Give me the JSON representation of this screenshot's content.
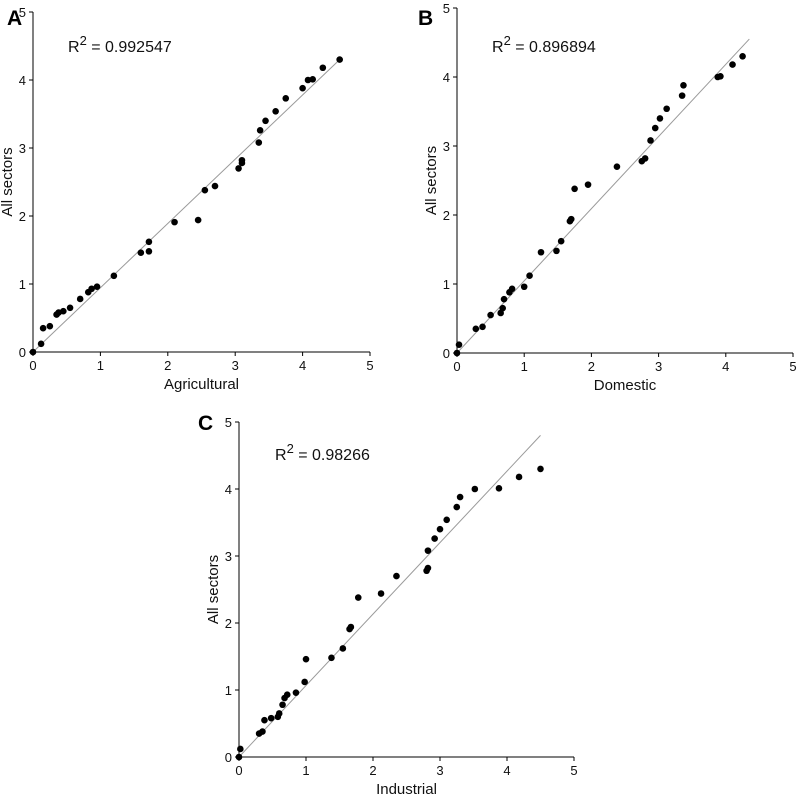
{
  "chart_data": [
    {
      "panel": "A",
      "type": "scatter",
      "xlabel": "Agricultural",
      "ylabel": "All sectors",
      "xlim": [
        0,
        5
      ],
      "ylim": [
        0,
        5
      ],
      "xticks": [
        0,
        1,
        2,
        3,
        4,
        5
      ],
      "yticks": [
        0,
        1,
        2,
        3,
        4,
        5
      ],
      "r2_prefix": "R",
      "r2_sup": "2",
      "r2_value": " = 0.992547",
      "fit_line": [
        [
          0,
          0
        ],
        [
          4.55,
          4.3
        ]
      ],
      "points": [
        [
          0.0,
          0.0
        ],
        [
          0.12,
          0.12
        ],
        [
          0.15,
          0.35
        ],
        [
          0.25,
          0.38
        ],
        [
          0.35,
          0.55
        ],
        [
          0.38,
          0.58
        ],
        [
          0.45,
          0.6
        ],
        [
          0.55,
          0.65
        ],
        [
          0.7,
          0.78
        ],
        [
          0.82,
          0.88
        ],
        [
          0.87,
          0.93
        ],
        [
          0.95,
          0.96
        ],
        [
          1.2,
          1.12
        ],
        [
          1.6,
          1.46
        ],
        [
          1.72,
          1.48
        ],
        [
          1.72,
          1.62
        ],
        [
          2.1,
          1.91
        ],
        [
          2.45,
          1.94
        ],
        [
          2.55,
          2.38
        ],
        [
          2.7,
          2.44
        ],
        [
          3.05,
          2.7
        ],
        [
          3.1,
          2.78
        ],
        [
          3.1,
          2.82
        ],
        [
          3.35,
          3.08
        ],
        [
          3.37,
          3.26
        ],
        [
          3.45,
          3.4
        ],
        [
          3.6,
          3.54
        ],
        [
          3.75,
          3.73
        ],
        [
          4.0,
          3.88
        ],
        [
          4.08,
          4.0
        ],
        [
          4.15,
          4.01
        ],
        [
          4.3,
          4.18
        ],
        [
          4.55,
          4.3
        ]
      ]
    },
    {
      "panel": "B",
      "type": "scatter",
      "xlabel": "Domestic",
      "ylabel": "All sectors",
      "xlim": [
        0,
        5
      ],
      "ylim": [
        0,
        5
      ],
      "xticks": [
        0,
        1,
        2,
        3,
        4,
        5
      ],
      "yticks": [
        0,
        1,
        2,
        3,
        4,
        5
      ],
      "r2_prefix": "R",
      "r2_sup": "2",
      "r2_value": " = 0.896894",
      "fit_line": [
        [
          0,
          0
        ],
        [
          4.35,
          4.55
        ]
      ],
      "points": [
        [
          0.0,
          0.0
        ],
        [
          0.03,
          0.12
        ],
        [
          0.28,
          0.35
        ],
        [
          0.38,
          0.38
        ],
        [
          0.5,
          0.55
        ],
        [
          0.65,
          0.58
        ],
        [
          0.68,
          0.65
        ],
        [
          0.7,
          0.78
        ],
        [
          0.78,
          0.88
        ],
        [
          0.82,
          0.93
        ],
        [
          1.0,
          0.96
        ],
        [
          1.08,
          1.12
        ],
        [
          1.25,
          1.46
        ],
        [
          1.48,
          1.48
        ],
        [
          1.55,
          1.62
        ],
        [
          1.68,
          1.91
        ],
        [
          1.7,
          1.94
        ],
        [
          1.75,
          2.38
        ],
        [
          1.95,
          2.44
        ],
        [
          2.38,
          2.7
        ],
        [
          2.75,
          2.78
        ],
        [
          2.8,
          2.82
        ],
        [
          2.88,
          3.08
        ],
        [
          2.95,
          3.26
        ],
        [
          3.02,
          3.4
        ],
        [
          3.12,
          3.54
        ],
        [
          3.35,
          3.73
        ],
        [
          3.37,
          3.88
        ],
        [
          3.88,
          4.0
        ],
        [
          3.92,
          4.01
        ],
        [
          4.1,
          4.18
        ],
        [
          4.25,
          4.3
        ]
      ]
    },
    {
      "panel": "C",
      "type": "scatter",
      "xlabel": "Industrial",
      "ylabel": "All sectors",
      "xlim": [
        0,
        5
      ],
      "ylim": [
        0,
        5
      ],
      "xticks": [
        0,
        1,
        2,
        3,
        4,
        5
      ],
      "yticks": [
        0,
        1,
        2,
        3,
        4,
        5
      ],
      "r2_prefix": "R",
      "r2_sup": "2",
      "r2_value": " = 0.98266",
      "fit_line": [
        [
          0,
          0
        ],
        [
          4.5,
          4.8
        ]
      ],
      "points": [
        [
          0.0,
          0.0
        ],
        [
          0.02,
          0.12
        ],
        [
          0.3,
          0.35
        ],
        [
          0.35,
          0.38
        ],
        [
          0.38,
          0.55
        ],
        [
          0.48,
          0.58
        ],
        [
          0.58,
          0.6
        ],
        [
          0.6,
          0.65
        ],
        [
          0.65,
          0.78
        ],
        [
          0.68,
          0.88
        ],
        [
          0.72,
          0.93
        ],
        [
          0.85,
          0.96
        ],
        [
          0.98,
          1.12
        ],
        [
          1.0,
          1.46
        ],
        [
          1.38,
          1.48
        ],
        [
          1.55,
          1.62
        ],
        [
          1.65,
          1.91
        ],
        [
          1.67,
          1.94
        ],
        [
          1.78,
          2.38
        ],
        [
          2.12,
          2.44
        ],
        [
          2.35,
          2.7
        ],
        [
          2.8,
          2.78
        ],
        [
          2.82,
          2.82
        ],
        [
          2.82,
          3.08
        ],
        [
          2.92,
          3.26
        ],
        [
          3.0,
          3.4
        ],
        [
          3.1,
          3.54
        ],
        [
          3.25,
          3.73
        ],
        [
          3.3,
          3.88
        ],
        [
          3.52,
          4.0
        ],
        [
          3.88,
          4.01
        ],
        [
          4.18,
          4.18
        ],
        [
          4.5,
          4.3
        ]
      ]
    }
  ]
}
